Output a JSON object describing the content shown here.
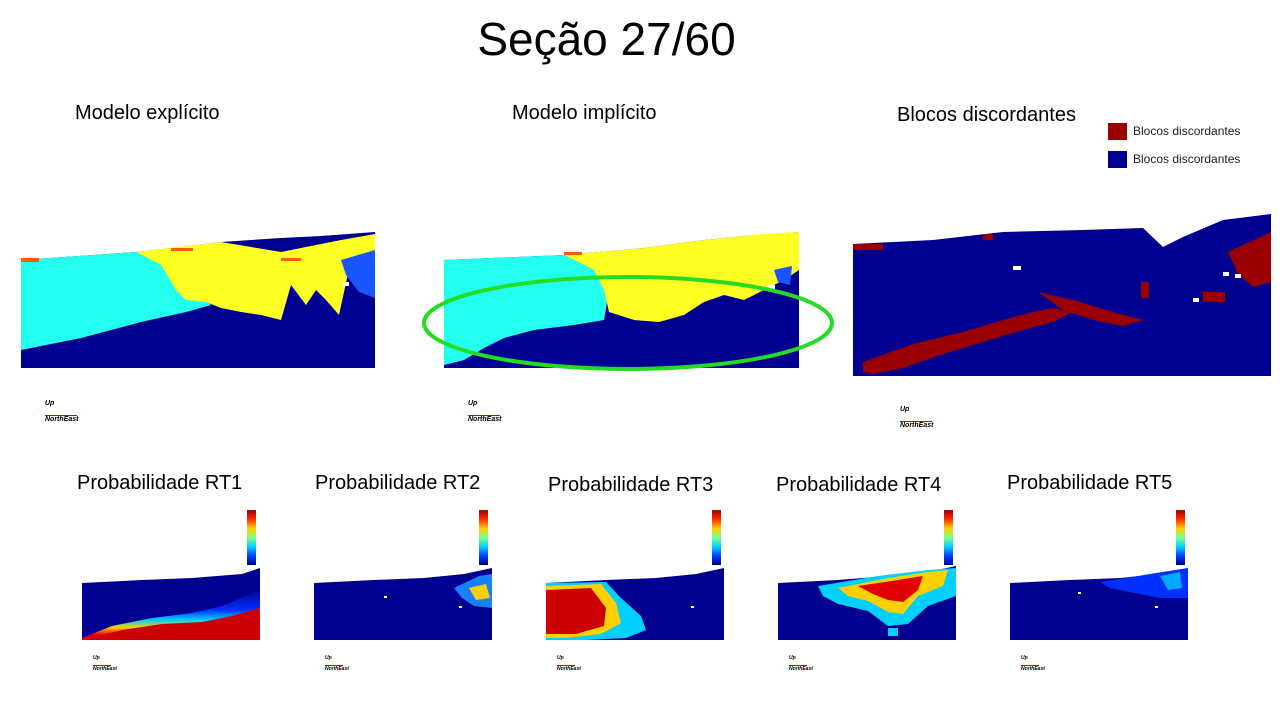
{
  "slide": {
    "title": "Seção 27/60"
  },
  "top_panels": [
    {
      "label": "Modelo explícito"
    },
    {
      "label": "Modelo implícito"
    },
    {
      "label": "Blocos discordantes"
    }
  ],
  "legend": {
    "items": [
      {
        "label": "Blocos discordantes",
        "color": "#9b0000"
      },
      {
        "label": "Blocos discordantes",
        "color": "#000090"
      }
    ]
  },
  "orientation": {
    "up": "Up",
    "north_east": "NorthEast"
  },
  "probability_panels": [
    {
      "label": "Probabilidade RT1"
    },
    {
      "label": "Probabilidade RT2"
    },
    {
      "label": "Probabilidade RT3"
    },
    {
      "label": "Probabilidade RT4"
    },
    {
      "label": "Probabilidade RT5"
    }
  ],
  "colors": {
    "dark_blue": "#000090",
    "cyan": "#22ffee",
    "yellow": "#ffff22",
    "orange": "#ff5a00",
    "highlight_ellipse": "#22dd22",
    "discordant_red": "#9b0000"
  }
}
